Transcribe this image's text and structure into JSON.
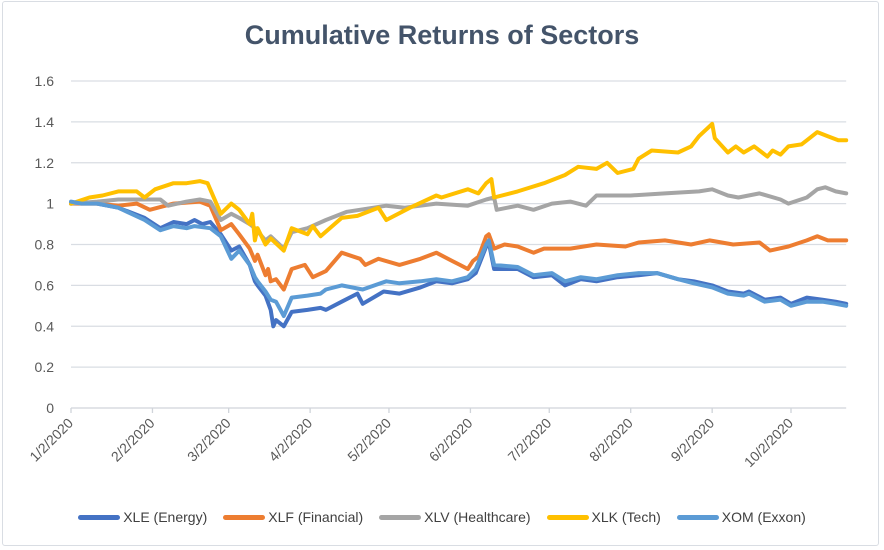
{
  "chart_data": {
    "type": "line",
    "title": "Cumulative Returns of Sectors",
    "xlabel": "",
    "ylabel": "",
    "x_unit": "days since 1/2/2020",
    "xlim": [
      0,
      295
    ],
    "ylim": [
      0,
      1.6
    ],
    "yticks": [
      0,
      0.2,
      0.4,
      0.6,
      0.8,
      1,
      1.2,
      1.4,
      1.6
    ],
    "ytick_labels": [
      "0",
      "0.2",
      "0.4",
      "0.6",
      "0.8",
      "1",
      "1.2",
      "1.4",
      "1.6"
    ],
    "xticks": [
      0,
      31,
      60,
      91,
      121,
      152,
      182,
      213,
      244,
      274
    ],
    "xtick_labels": [
      "1/2/2020",
      "2/2/2020",
      "3/2/2020",
      "4/2/2020",
      "5/2/2020",
      "6/2/2020",
      "7/2/2020",
      "8/2/2020",
      "9/2/2020",
      "10/2/2020"
    ],
    "grid": true,
    "legend_position": "bottom",
    "series": [
      {
        "name": "XLE (Energy)",
        "color": "#4472c4",
        "points": [
          [
            0,
            1.0
          ],
          [
            4,
            1.01
          ],
          [
            10,
            1.0
          ],
          [
            18,
            0.98
          ],
          [
            28,
            0.93
          ],
          [
            34,
            0.88
          ],
          [
            39,
            0.91
          ],
          [
            44,
            0.9
          ],
          [
            47,
            0.92
          ],
          [
            50,
            0.9
          ],
          [
            53,
            0.91
          ],
          [
            57,
            0.85
          ],
          [
            61,
            0.77
          ],
          [
            64,
            0.79
          ],
          [
            68,
            0.7
          ],
          [
            70,
            0.62
          ],
          [
            71,
            0.6
          ],
          [
            74,
            0.55
          ],
          [
            76,
            0.48
          ],
          [
            77,
            0.4
          ],
          [
            78,
            0.43
          ],
          [
            81,
            0.4
          ],
          [
            84,
            0.47
          ],
          [
            90,
            0.48
          ],
          [
            95,
            0.49
          ],
          [
            97,
            0.48
          ],
          [
            103,
            0.52
          ],
          [
            109,
            0.56
          ],
          [
            111,
            0.51
          ],
          [
            119,
            0.57
          ],
          [
            125,
            0.56
          ],
          [
            133,
            0.59
          ],
          [
            139,
            0.62
          ],
          [
            145,
            0.61
          ],
          [
            151,
            0.63
          ],
          [
            154,
            0.66
          ],
          [
            158,
            0.79
          ],
          [
            159,
            0.81
          ],
          [
            161,
            0.68
          ],
          [
            170,
            0.68
          ],
          [
            176,
            0.64
          ],
          [
            183,
            0.65
          ],
          [
            188,
            0.6
          ],
          [
            194,
            0.63
          ],
          [
            200,
            0.62
          ],
          [
            208,
            0.64
          ],
          [
            216,
            0.65
          ],
          [
            223,
            0.66
          ],
          [
            231,
            0.63
          ],
          [
            237,
            0.62
          ],
          [
            244,
            0.6
          ],
          [
            250,
            0.57
          ],
          [
            256,
            0.56
          ],
          [
            258,
            0.57
          ],
          [
            264,
            0.53
          ],
          [
            270,
            0.54
          ],
          [
            274,
            0.51
          ],
          [
            280,
            0.54
          ],
          [
            286,
            0.53
          ],
          [
            291,
            0.52
          ],
          [
            295,
            0.51
          ]
        ]
      },
      {
        "name": "XLF (Financial)",
        "color": "#ed7d31",
        "points": [
          [
            0,
            1.0
          ],
          [
            10,
            1.0
          ],
          [
            18,
            0.99
          ],
          [
            25,
            1.0
          ],
          [
            30,
            0.97
          ],
          [
            39,
            1.0
          ],
          [
            49,
            1.01
          ],
          [
            53,
            0.99
          ],
          [
            57,
            0.87
          ],
          [
            61,
            0.9
          ],
          [
            64,
            0.85
          ],
          [
            68,
            0.78
          ],
          [
            70,
            0.72
          ],
          [
            71,
            0.75
          ],
          [
            74,
            0.65
          ],
          [
            75,
            0.68
          ],
          [
            76,
            0.62
          ],
          [
            78,
            0.63
          ],
          [
            81,
            0.58
          ],
          [
            84,
            0.68
          ],
          [
            89,
            0.7
          ],
          [
            92,
            0.64
          ],
          [
            97,
            0.67
          ],
          [
            103,
            0.76
          ],
          [
            110,
            0.73
          ],
          [
            112,
            0.7
          ],
          [
            117,
            0.73
          ],
          [
            125,
            0.7
          ],
          [
            133,
            0.73
          ],
          [
            139,
            0.76
          ],
          [
            145,
            0.72
          ],
          [
            148,
            0.7
          ],
          [
            151,
            0.68
          ],
          [
            153,
            0.72
          ],
          [
            155,
            0.74
          ],
          [
            156,
            0.77
          ],
          [
            158,
            0.84
          ],
          [
            159,
            0.85
          ],
          [
            161,
            0.78
          ],
          [
            165,
            0.8
          ],
          [
            170,
            0.79
          ],
          [
            176,
            0.76
          ],
          [
            180,
            0.78
          ],
          [
            190,
            0.78
          ],
          [
            200,
            0.8
          ],
          [
            211,
            0.79
          ],
          [
            216,
            0.81
          ],
          [
            226,
            0.82
          ],
          [
            236,
            0.8
          ],
          [
            243,
            0.82
          ],
          [
            252,
            0.8
          ],
          [
            262,
            0.81
          ],
          [
            266,
            0.77
          ],
          [
            273,
            0.79
          ],
          [
            280,
            0.82
          ],
          [
            284,
            0.84
          ],
          [
            288,
            0.82
          ],
          [
            295,
            0.82
          ]
        ]
      },
      {
        "name": "XLV (Healthcare)",
        "color": "#a5a5a5",
        "points": [
          [
            0,
            1.0
          ],
          [
            10,
            1.01
          ],
          [
            18,
            1.02
          ],
          [
            34,
            1.02
          ],
          [
            37,
            0.99
          ],
          [
            44,
            1.01
          ],
          [
            49,
            1.02
          ],
          [
            53,
            1.01
          ],
          [
            57,
            0.92
          ],
          [
            61,
            0.95
          ],
          [
            64,
            0.93
          ],
          [
            68,
            0.9
          ],
          [
            70,
            0.88
          ],
          [
            74,
            0.82
          ],
          [
            76,
            0.84
          ],
          [
            81,
            0.78
          ],
          [
            84,
            0.86
          ],
          [
            90,
            0.88
          ],
          [
            97,
            0.92
          ],
          [
            105,
            0.96
          ],
          [
            120,
            0.99
          ],
          [
            127,
            0.98
          ],
          [
            139,
            1.0
          ],
          [
            151,
            0.99
          ],
          [
            158,
            1.02
          ],
          [
            161,
            1.03
          ],
          [
            162,
            0.97
          ],
          [
            170,
            0.99
          ],
          [
            176,
            0.97
          ],
          [
            183,
            1.0
          ],
          [
            190,
            1.01
          ],
          [
            196,
            0.99
          ],
          [
            200,
            1.04
          ],
          [
            213,
            1.04
          ],
          [
            226,
            1.05
          ],
          [
            239,
            1.06
          ],
          [
            244,
            1.07
          ],
          [
            250,
            1.04
          ],
          [
            254,
            1.03
          ],
          [
            262,
            1.05
          ],
          [
            270,
            1.02
          ],
          [
            273,
            1.0
          ],
          [
            280,
            1.03
          ],
          [
            284,
            1.07
          ],
          [
            287,
            1.08
          ],
          [
            291,
            1.06
          ],
          [
            295,
            1.05
          ]
        ]
      },
      {
        "name": "XLK (Tech)",
        "color": "#ffc000",
        "points": [
          [
            0,
            1.0
          ],
          [
            7,
            1.03
          ],
          [
            12,
            1.04
          ],
          [
            18,
            1.06
          ],
          [
            25,
            1.06
          ],
          [
            28,
            1.03
          ],
          [
            32,
            1.07
          ],
          [
            39,
            1.1
          ],
          [
            44,
            1.1
          ],
          [
            49,
            1.11
          ],
          [
            52,
            1.1
          ],
          [
            57,
            0.95
          ],
          [
            61,
            1.0
          ],
          [
            64,
            0.97
          ],
          [
            68,
            0.9
          ],
          [
            69,
            0.95
          ],
          [
            70,
            0.82
          ],
          [
            71,
            0.88
          ],
          [
            74,
            0.8
          ],
          [
            76,
            0.83
          ],
          [
            81,
            0.77
          ],
          [
            84,
            0.88
          ],
          [
            90,
            0.85
          ],
          [
            92,
            0.89
          ],
          [
            95,
            0.84
          ],
          [
            103,
            0.93
          ],
          [
            109,
            0.94
          ],
          [
            117,
            0.98
          ],
          [
            120,
            0.92
          ],
          [
            129,
            0.98
          ],
          [
            139,
            1.04
          ],
          [
            141,
            1.03
          ],
          [
            151,
            1.07
          ],
          [
            155,
            1.05
          ],
          [
            158,
            1.1
          ],
          [
            160,
            1.12
          ],
          [
            161,
            1.03
          ],
          [
            170,
            1.06
          ],
          [
            180,
            1.1
          ],
          [
            188,
            1.14
          ],
          [
            193,
            1.18
          ],
          [
            200,
            1.17
          ],
          [
            204,
            1.2
          ],
          [
            208,
            1.15
          ],
          [
            214,
            1.17
          ],
          [
            216,
            1.22
          ],
          [
            221,
            1.26
          ],
          [
            231,
            1.25
          ],
          [
            236,
            1.28
          ],
          [
            239,
            1.33
          ],
          [
            244,
            1.39
          ],
          [
            245,
            1.32
          ],
          [
            250,
            1.25
          ],
          [
            253,
            1.28
          ],
          [
            256,
            1.25
          ],
          [
            260,
            1.28
          ],
          [
            265,
            1.23
          ],
          [
            267,
            1.26
          ],
          [
            270,
            1.24
          ],
          [
            273,
            1.28
          ],
          [
            278,
            1.29
          ],
          [
            280,
            1.31
          ],
          [
            284,
            1.35
          ],
          [
            288,
            1.33
          ],
          [
            292,
            1.31
          ],
          [
            295,
            1.31
          ]
        ]
      },
      {
        "name": "XOM (Exxon)",
        "color": "#5b9bd5",
        "points": [
          [
            0,
            1.01
          ],
          [
            4,
            1.0
          ],
          [
            10,
            1.0
          ],
          [
            18,
            0.98
          ],
          [
            28,
            0.92
          ],
          [
            34,
            0.87
          ],
          [
            39,
            0.89
          ],
          [
            44,
            0.88
          ],
          [
            47,
            0.89
          ],
          [
            53,
            0.88
          ],
          [
            57,
            0.84
          ],
          [
            61,
            0.73
          ],
          [
            64,
            0.77
          ],
          [
            68,
            0.7
          ],
          [
            70,
            0.64
          ],
          [
            71,
            0.62
          ],
          [
            74,
            0.57
          ],
          [
            76,
            0.53
          ],
          [
            78,
            0.52
          ],
          [
            81,
            0.45
          ],
          [
            84,
            0.54
          ],
          [
            90,
            0.55
          ],
          [
            95,
            0.56
          ],
          [
            97,
            0.58
          ],
          [
            103,
            0.6
          ],
          [
            111,
            0.58
          ],
          [
            120,
            0.62
          ],
          [
            125,
            0.61
          ],
          [
            133,
            0.62
          ],
          [
            139,
            0.63
          ],
          [
            145,
            0.62
          ],
          [
            151,
            0.64
          ],
          [
            154,
            0.68
          ],
          [
            158,
            0.8
          ],
          [
            159,
            0.82
          ],
          [
            161,
            0.7
          ],
          [
            170,
            0.69
          ],
          [
            176,
            0.65
          ],
          [
            183,
            0.66
          ],
          [
            188,
            0.62
          ],
          [
            194,
            0.64
          ],
          [
            200,
            0.63
          ],
          [
            208,
            0.65
          ],
          [
            216,
            0.66
          ],
          [
            223,
            0.66
          ],
          [
            231,
            0.63
          ],
          [
            237,
            0.61
          ],
          [
            244,
            0.59
          ],
          [
            250,
            0.56
          ],
          [
            256,
            0.55
          ],
          [
            258,
            0.56
          ],
          [
            264,
            0.52
          ],
          [
            270,
            0.53
          ],
          [
            274,
            0.5
          ],
          [
            280,
            0.52
          ],
          [
            286,
            0.52
          ],
          [
            291,
            0.51
          ],
          [
            295,
            0.5
          ]
        ]
      }
    ]
  }
}
